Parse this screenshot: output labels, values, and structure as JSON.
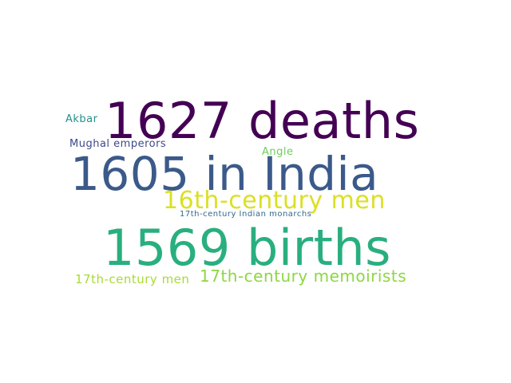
{
  "words": [
    {
      "text": "1627 deaths",
      "color": "#440154"
    },
    {
      "text": "1605 in India",
      "color": "#3b5a8a"
    },
    {
      "text": "1569 births",
      "color": "#29af7f"
    },
    {
      "text": "16th-century men",
      "color": "#dbe024"
    },
    {
      "text": "17th-century memoirists",
      "color": "#8ed645"
    },
    {
      "text": "17th-century men",
      "color": "#a8db34"
    },
    {
      "text": "Mughal emperors",
      "color": "#3e4989"
    },
    {
      "text": "Akbar",
      "color": "#21918c"
    },
    {
      "text": "Angle",
      "color": "#6ece58"
    },
    {
      "text": "17th-century Indian monarchs",
      "color": "#31688e"
    }
  ]
}
